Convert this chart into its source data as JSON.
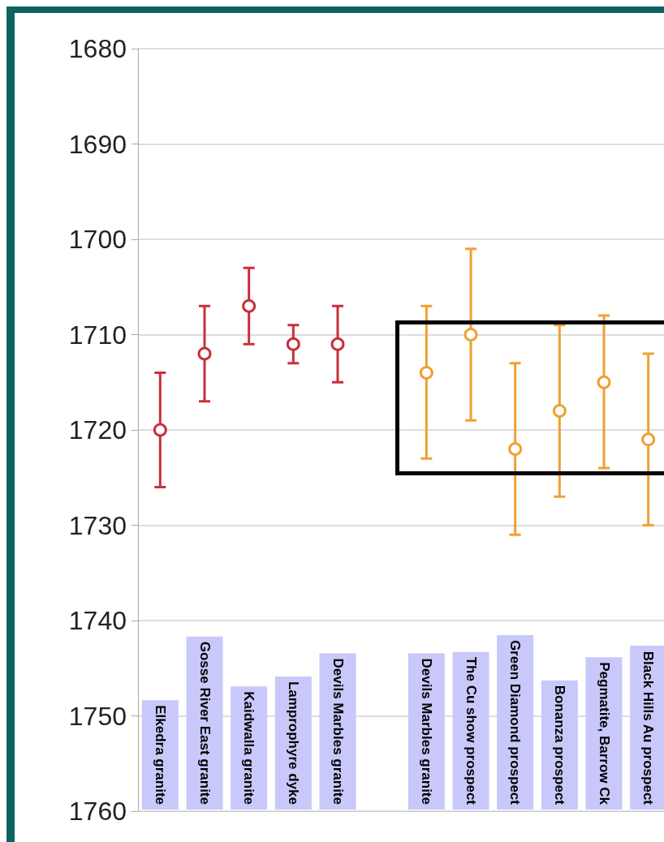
{
  "chart_data": {
    "type": "scatter",
    "categories": [
      "Elkedra granite",
      "Gosse River East granite",
      "Kaidwalla granite",
      "Lamprophyre dyke",
      "Devils Marbles granite",
      null,
      "Devils Marbles granite",
      "The Cu show prospect",
      "Green Diamond prospect",
      "Bonanza prospect",
      "Pegmatite, Barrow Ck",
      "Black Hills Au prospect"
    ],
    "series": [
      {
        "color": "#c8303a",
        "values": [
          1720,
          1712,
          1707,
          1711,
          1711,
          null,
          null,
          null,
          null,
          null,
          null,
          null
        ],
        "errors": [
          [
            1714,
            1726
          ],
          [
            1707,
            1717
          ],
          [
            1703,
            1711
          ],
          [
            1709,
            1713
          ],
          [
            1707,
            1715
          ],
          null,
          null,
          null,
          null,
          null,
          null,
          null
        ]
      },
      {
        "color": "#f0a030",
        "values": [
          null,
          null,
          null,
          null,
          null,
          null,
          1714,
          1710,
          1722,
          1718,
          1715,
          1721
        ],
        "errors": [
          null,
          null,
          null,
          null,
          null,
          null,
          [
            1707,
            1723
          ],
          [
            1701,
            1719
          ],
          [
            1713,
            1731
          ],
          [
            1709,
            1727
          ],
          [
            1708,
            1724
          ],
          [
            1712,
            1730
          ]
        ]
      }
    ],
    "ylim": [
      1760,
      1680
    ],
    "yticks": [
      1680,
      1690,
      1700,
      1710,
      1720,
      1730,
      1740,
      1750,
      1760
    ],
    "grid": "y",
    "marker": "circle"
  }
}
